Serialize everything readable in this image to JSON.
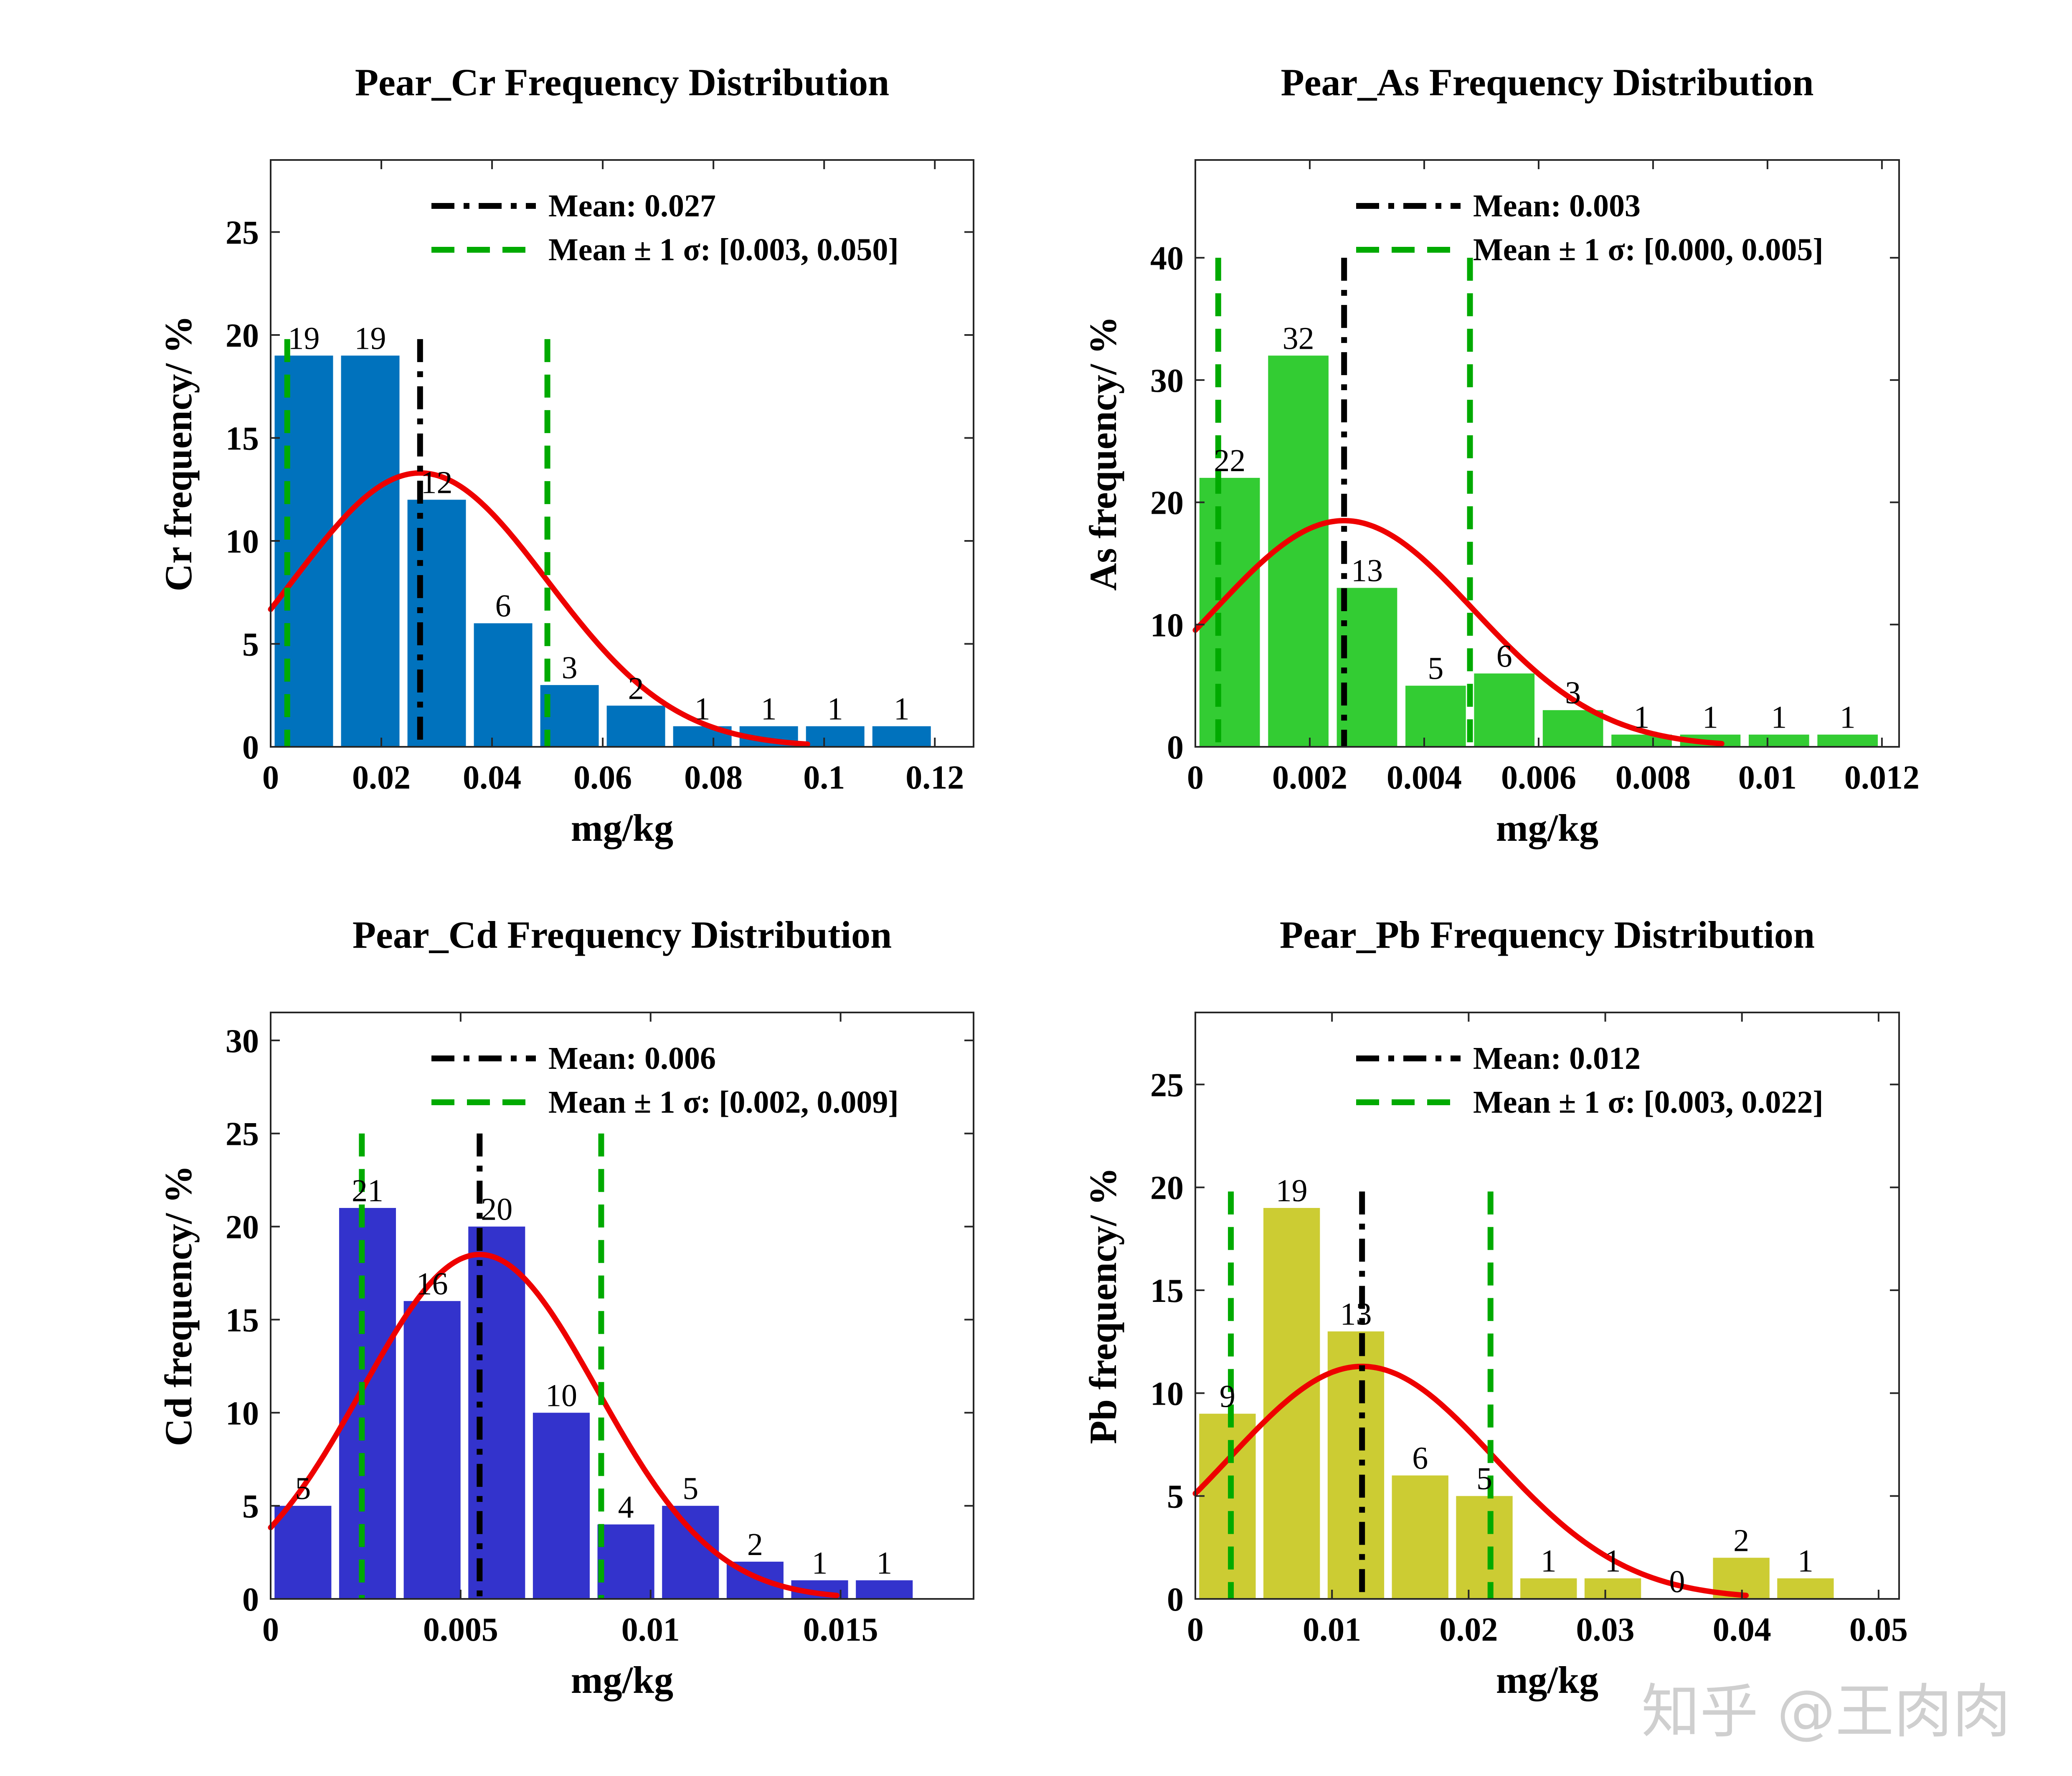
{
  "chart_data": [
    {
      "type": "bar",
      "title": "Pear_Cr Frequency Distribution",
      "xlabel": "mg/kg",
      "ylabel": "Cr frequency/ %",
      "xlim": [
        0,
        0.127
      ],
      "ylim": [
        0,
        28.5
      ],
      "xticks": [
        0,
        0.02,
        0.04,
        0.06,
        0.08,
        0.1,
        0.12
      ],
      "xtick_labels": [
        "0",
        "0.02",
        "0.04",
        "0.06",
        "0.08",
        "0.1",
        "0.12"
      ],
      "yticks": [
        0,
        5,
        10,
        15,
        20,
        25
      ],
      "bar_color": "#0072BD",
      "bin_edges": [
        0,
        0.012,
        0.024,
        0.036,
        0.048,
        0.06,
        0.072,
        0.084,
        0.096,
        0.108,
        0.12
      ],
      "values": [
        19,
        19,
        12,
        6,
        3,
        2,
        1,
        1,
        1,
        1
      ],
      "bar_labels": [
        "19",
        "19",
        "12",
        "6",
        "3",
        "2",
        "1",
        "1",
        "1",
        "1"
      ],
      "mean": 0.027,
      "sigma_low": 0.003,
      "sigma_high": 0.05,
      "curve_peak": 13.3,
      "curve_sigma": 0.023,
      "curve_end": 0.097,
      "mean_line_top": 19.8,
      "sigma_line_top": 19.8,
      "legend_mean": "Mean: 0.027",
      "legend_sigma": "Mean ± 1 σ: [0.003, 0.050]"
    },
    {
      "type": "bar",
      "title": "Pear_As Frequency Distribution",
      "xlabel": "mg/kg",
      "ylabel": "As frequency/ %",
      "xlim": [
        0,
        0.0123
      ],
      "ylim": [
        0,
        48
      ],
      "xticks": [
        0,
        0.002,
        0.004,
        0.006,
        0.008,
        0.01,
        0.012
      ],
      "xtick_labels": [
        "0",
        "0.002",
        "0.004",
        "0.006",
        "0.008",
        "0.01",
        "0.012"
      ],
      "yticks": [
        0,
        10,
        20,
        30,
        40
      ],
      "bar_color": "#33CC33",
      "bin_edges": [
        0,
        0.0012,
        0.0024,
        0.0036,
        0.0048,
        0.006,
        0.0072,
        0.0084,
        0.0096,
        0.0108,
        0.012
      ],
      "values": [
        22,
        32,
        13,
        5,
        6,
        3,
        1,
        1,
        1,
        1
      ],
      "bar_labels": [
        "22",
        "32",
        "13",
        "5",
        "6",
        "3",
        "1",
        "1",
        "1",
        "1"
      ],
      "mean": 0.0026,
      "sigma_low": 0.0004,
      "sigma_high": 0.0048,
      "curve_peak": 18.5,
      "curve_sigma": 0.00226,
      "curve_end": 0.0092,
      "mean_line_top": 40,
      "sigma_line_top": 40,
      "legend_mean": "Mean: 0.003",
      "legend_sigma": "Mean ± 1 σ: [0.000, 0.005]"
    },
    {
      "type": "bar",
      "title": "Pear_Cd Frequency Distribution",
      "xlabel": "mg/kg",
      "ylabel": "Cd frequency/ %",
      "xlim": [
        0,
        0.0185
      ],
      "ylim": [
        0,
        31.5
      ],
      "xticks": [
        0,
        0.005,
        0.01,
        0.015
      ],
      "xtick_labels": [
        "0",
        "0.005",
        "0.01",
        "0.015"
      ],
      "yticks": [
        0,
        5,
        10,
        15,
        20,
        25,
        30
      ],
      "bar_color": "#3333CC",
      "bin_edges": [
        0,
        0.0017,
        0.0034,
        0.0051,
        0.0068,
        0.0085,
        0.0102,
        0.0119,
        0.0136,
        0.0153,
        0.017
      ],
      "values": [
        5,
        21,
        16,
        20,
        10,
        4,
        5,
        2,
        1,
        1
      ],
      "bar_labels": [
        "5",
        "21",
        "16",
        "20",
        "10",
        "4",
        "5",
        "2",
        "1",
        "1"
      ],
      "mean": 0.0055,
      "sigma_low": 0.0024,
      "sigma_high": 0.0087,
      "curve_peak": 18.5,
      "curve_sigma": 0.0031,
      "curve_end": 0.0149,
      "mean_line_top": 25,
      "sigma_line_top": 25,
      "legend_mean": "Mean: 0.006",
      "legend_sigma": "Mean ± 1 σ: [0.002, 0.009]"
    },
    {
      "type": "bar",
      "title": "Pear_Pb Frequency Distribution",
      "xlabel": "mg/kg",
      "ylabel": "Pb frequency/ %",
      "xlim": [
        0,
        0.0515
      ],
      "ylim": [
        0,
        28.5
      ],
      "xticks": [
        0,
        0.01,
        0.02,
        0.03,
        0.04,
        0.05
      ],
      "xtick_labels": [
        "0",
        "0.01",
        "0.02",
        "0.03",
        "0.04",
        "0.05"
      ],
      "yticks": [
        0,
        5,
        10,
        15,
        20,
        25
      ],
      "bar_color": "#CCCC33",
      "bin_edges": [
        0,
        0.0047,
        0.0094,
        0.0141,
        0.0188,
        0.0235,
        0.0282,
        0.0329,
        0.0376,
        0.0423,
        0.047
      ],
      "values": [
        9,
        19,
        13,
        6,
        5,
        1,
        1,
        0,
        2,
        1
      ],
      "bar_labels": [
        "9",
        "19",
        "13",
        "6",
        "5",
        "1",
        "1",
        "0",
        "2",
        "1"
      ],
      "mean": 0.0122,
      "sigma_low": 0.0026,
      "sigma_high": 0.0216,
      "curve_peak": 11.3,
      "curve_sigma": 0.0097,
      "curve_end": 0.0403,
      "mean_line_top": 19.8,
      "sigma_line_top": 19.8,
      "legend_mean": "Mean: 0.012",
      "legend_sigma": "Mean ± 1 σ: [0.003, 0.022]"
    }
  ],
  "colors": {
    "curve": "#EE0000",
    "mean_line": "#000000",
    "sigma_line": "#00AA00"
  },
  "watermark": "知乎 @王肉肉"
}
